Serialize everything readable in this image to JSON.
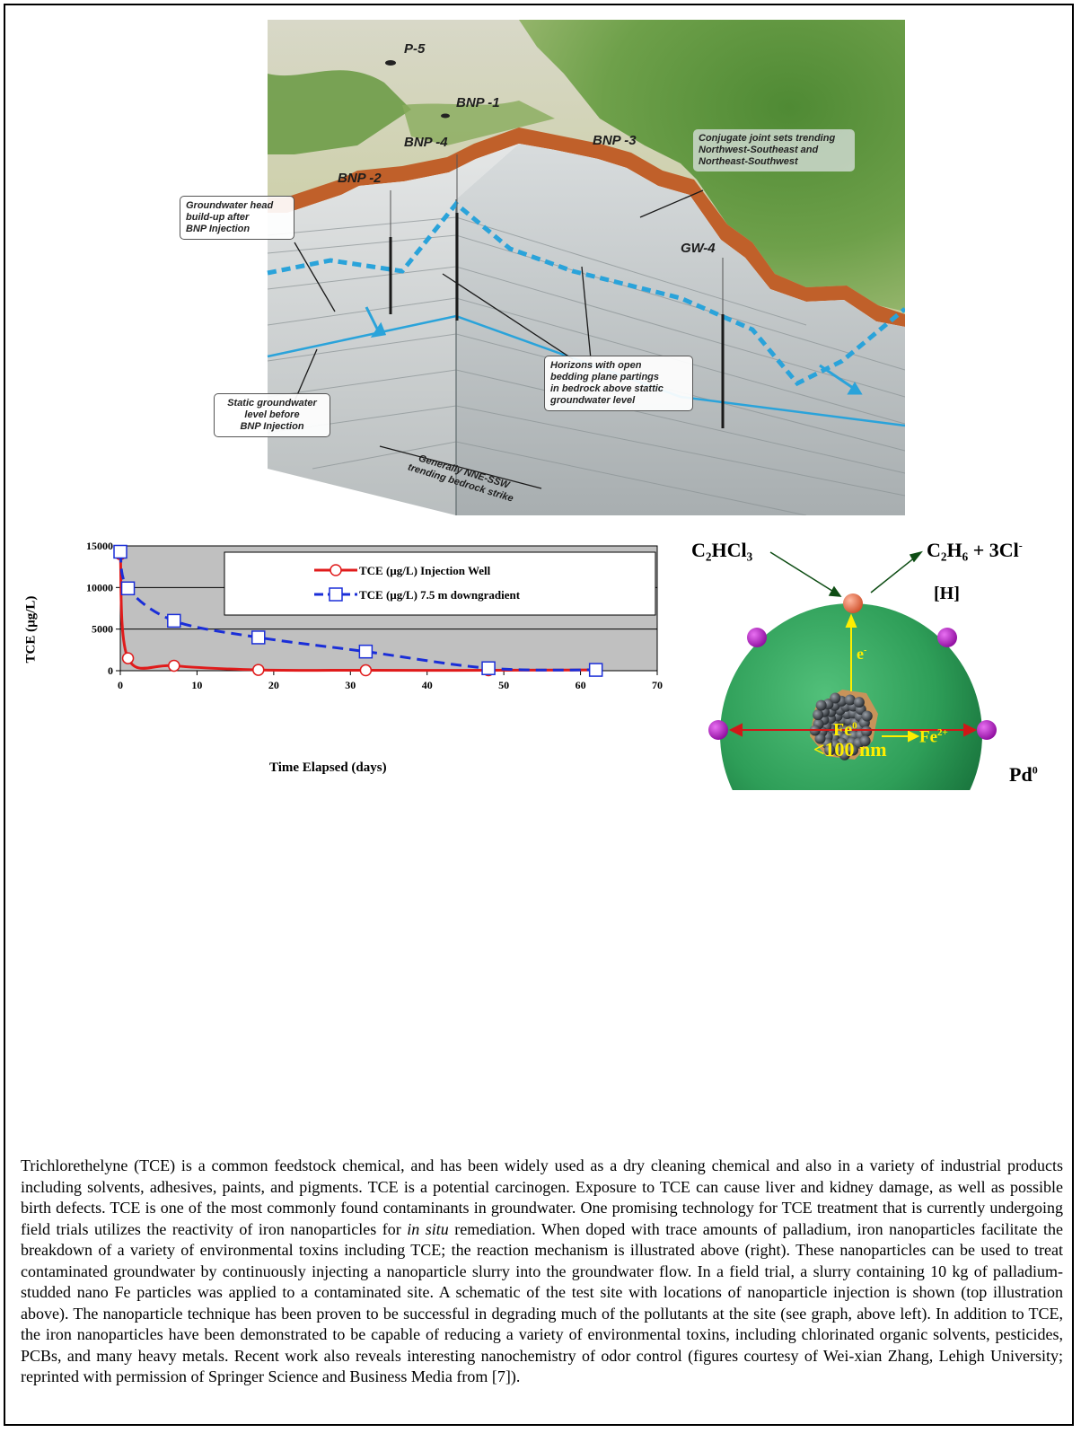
{
  "diagram": {
    "wells": {
      "p5": "P-5",
      "bnp1": "BNP -1",
      "bnp4": "BNP -4",
      "bnp3": "BNP -3",
      "bnp2": "BNP -2",
      "gw4": "GW-4"
    },
    "callouts": {
      "joints": [
        "Conjugate joint sets trending",
        "Northwest-Southeast and",
        "Northeast-Southwest"
      ],
      "head": [
        "Groundwater head",
        "build-up after",
        "BNP Injection"
      ],
      "static": [
        "Static groundwater",
        "level before",
        "BNP Injection"
      ],
      "horizons": [
        "Horizons with open",
        "bedding plane partings",
        "in bedrock above stattic",
        "groundwater level"
      ],
      "strike": [
        "Generally NNE-SSW",
        "trending bedrock strike"
      ]
    },
    "colors": {
      "water": "#2aa3da",
      "soil": "#c0602a",
      "forest": "#5a8f3c"
    }
  },
  "chart_data": {
    "type": "line",
    "ylabel": "TCE (µg/L)",
    "xlabel": "Time Elapsed (days)",
    "xlim": [
      0,
      70
    ],
    "ylim": [
      0,
      15000
    ],
    "xticks": [
      0,
      10,
      20,
      30,
      40,
      50,
      60,
      70
    ],
    "yticks": [
      0,
      5000,
      10000,
      15000
    ],
    "grid": "horizontal",
    "legend_position": "top-right",
    "background": "#c0c0c0",
    "series": [
      {
        "name": "TCE (µg/L) Injection Well",
        "color": "#e01b1b",
        "marker": "circle",
        "line": "solid",
        "x": [
          0,
          1,
          7,
          18,
          32,
          48,
          62
        ],
        "y": [
          14000,
          1500,
          600,
          100,
          50,
          50,
          100
        ]
      },
      {
        "name": "TCE (µg/L) 7.5 m downgradient",
        "color": "#1a2ed8",
        "marker": "square",
        "line": "dashed",
        "x": [
          0,
          1,
          7,
          18,
          32,
          48,
          62
        ],
        "y": [
          14300,
          9900,
          6000,
          4000,
          2300,
          300,
          100
        ]
      }
    ]
  },
  "particle": {
    "reactant": "C₂HCl₃",
    "product_main": "C₂H₆ + 3Cl",
    "product_sup": "-",
    "hydrogen": "[H]",
    "electron": "e",
    "electron_sup": "-",
    "fe0": "Fe",
    "fe0_sup": "0",
    "fe2": "Fe",
    "fe2_sup": "2+",
    "size": "<100 nm",
    "pd": "Pd",
    "pd_sup": "0",
    "colors": {
      "sphere": "#2e9e58",
      "pd": "#b01cc4",
      "arrow": "#d01818",
      "label": "#ffee00"
    }
  },
  "paragraph": {
    "part1": "Trichlorethelyne (TCE) is a common feedstock chemical, and has been widely used as a dry cleaning chemical and also in a variety of industrial products including solvents, adhesives, paints, and pigments. TCE is a potential carcinogen. Exposure to TCE can cause liver and kidney damage, as well as possible birth defects. TCE is one of the most commonly found contaminants in groundwater. One promising technology for TCE treatment that is currently undergoing field trials utilizes the reactivity of iron nanoparticles for ",
    "italic": "in situ",
    "part2": " remediation. When doped with trace amounts of palladium, iron nanoparticles facilitate the breakdown of a variety of environmental toxins including TCE; the reaction mechanism is illustrated above (right). These nanoparticles can be used to treat contaminated groundwater by continuously injecting a nanoparticle slurry into the groundwater flow. In a field trial, a slurry containing 10 kg of palladium-studded nano Fe particles was applied to a contaminated site. A schematic of the test site with locations of nanoparticle injection is shown (top illustration above). The nanoparticle technique has been proven to be successful in degrading much of the pollutants at the site (see graph, above left). In addition to TCE, the iron nanoparticles have been demonstrated to be capable of reducing a variety of environmental toxins, including chlorinated organic solvents, pesticides, PCBs, and many heavy metals. Recent work also reveals interesting nanochemistry of odor control (figures courtesy of Wei-xian Zhang, Lehigh University; reprinted with permission of Springer Science and Business Media from [7])."
  }
}
